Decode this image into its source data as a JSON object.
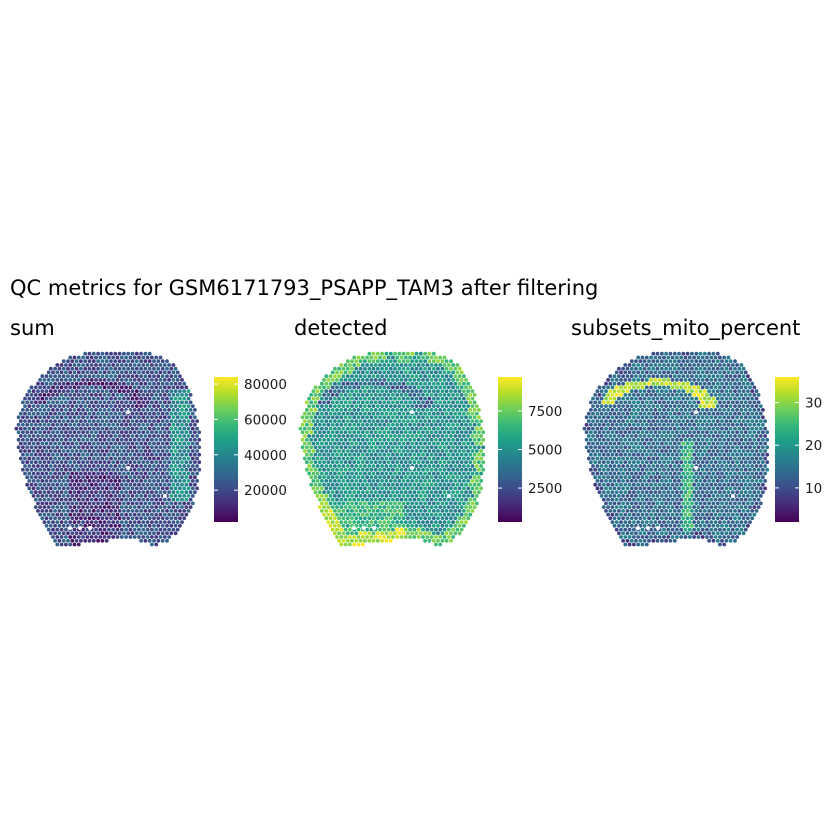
{
  "title": "QC metrics for GSM6171793_PSAPP_TAM3 after filtering",
  "colors": {
    "viridis": [
      "#440154",
      "#482878",
      "#3e4989",
      "#31688e",
      "#26828e",
      "#1f9e89",
      "#35b779",
      "#6ece58",
      "#b5de2b",
      "#fde725"
    ],
    "background": "#ffffff"
  },
  "chart_data": [
    {
      "type": "heatmap",
      "title": "sum",
      "colormap": "viridis",
      "legend": {
        "position": "right",
        "min": 2000,
        "max": 84000,
        "ticks": [
          20000,
          40000,
          60000,
          80000
        ],
        "tick_labels": [
          "20000",
          "40000",
          "60000",
          "80000"
        ]
      },
      "typical_level": 0.25
    },
    {
      "type": "heatmap",
      "title": "detected",
      "colormap": "viridis",
      "legend": {
        "position": "right",
        "min": 300,
        "max": 9700,
        "ticks": [
          2500,
          5000,
          7500
        ],
        "tick_labels": [
          "2500",
          "5000",
          "7500"
        ]
      },
      "typical_level": 0.5
    },
    {
      "type": "heatmap",
      "title": "subsets_mito_percent",
      "colormap": "viridis",
      "legend": {
        "position": "right",
        "min": 2,
        "max": 36,
        "ticks": [
          10,
          20,
          30
        ],
        "tick_labels": [
          "10",
          "20",
          "30"
        ]
      },
      "typical_level": 0.35
    }
  ]
}
